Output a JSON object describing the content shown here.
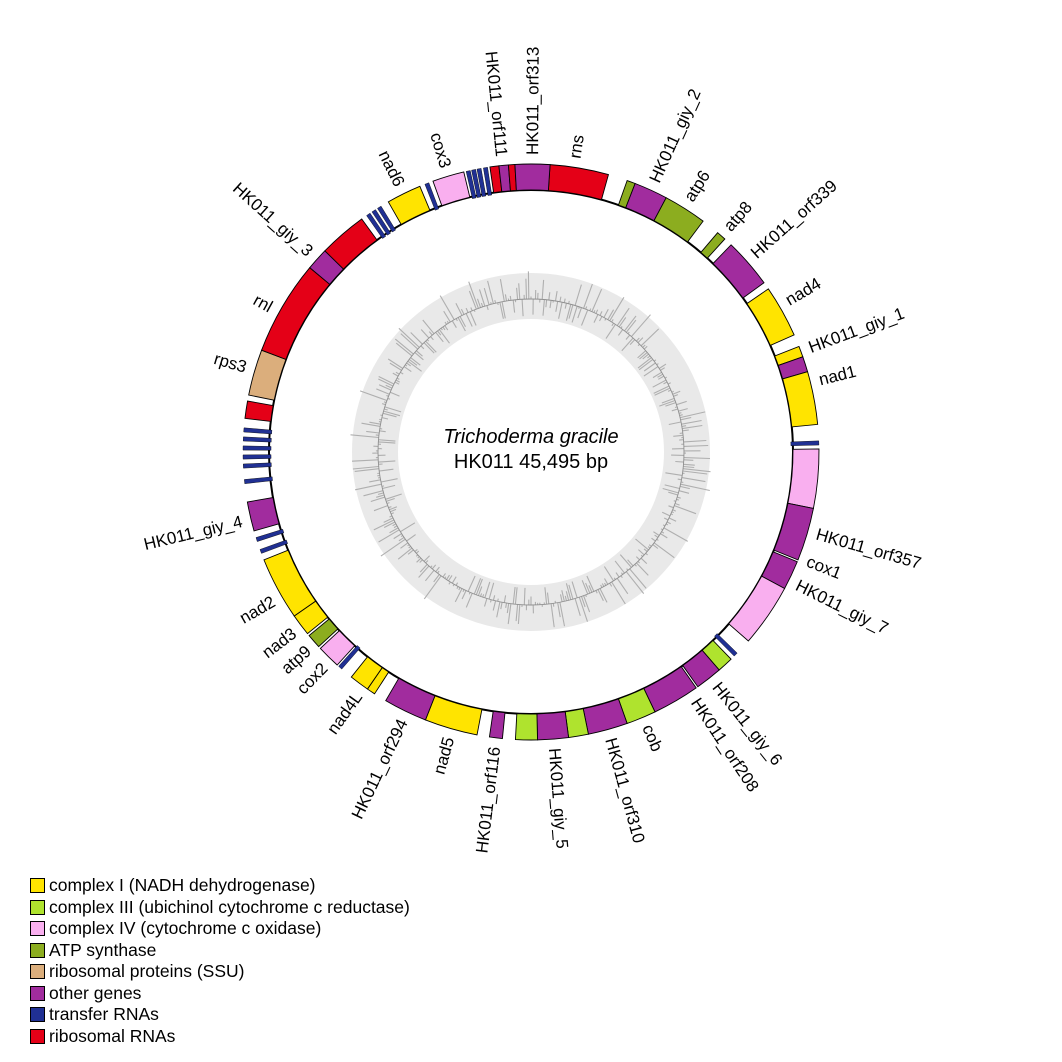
{
  "chart_data": {
    "type": "circular-genome-map",
    "title": "Trichoderma gracile",
    "subtitle": "HK011  45,495 bp",
    "genome_length_bp": 45495,
    "legend": [
      {
        "key": "complex1",
        "color": "#FFE400",
        "label": "complex I (NADH dehydrogenase)"
      },
      {
        "key": "complex3",
        "color": "#AFE32E",
        "label": "complex III (ubichinol cytochrome c reductase)"
      },
      {
        "key": "complex4",
        "color": "#F9AFEF",
        "label": "complex IV (cytochrome c oxidase)"
      },
      {
        "key": "atp",
        "color": "#8CAD1F",
        "label": "ATP synthase"
      },
      {
        "key": "ssu",
        "color": "#DBAE7C",
        "label": "ribosomal proteins (SSU)"
      },
      {
        "key": "other",
        "color": "#A12C9E",
        "label": "other genes"
      },
      {
        "key": "trna",
        "color": "#203093",
        "label": "transfer RNAs"
      },
      {
        "key": "rrna",
        "color": "#E40017",
        "label": "ribosomal RNAs"
      }
    ],
    "segments": [
      {
        "name": "rns",
        "cat": "rrna",
        "a0": 3.8,
        "a1": 15.6
      },
      {
        "name": "atp6_exon1",
        "cat": "atp",
        "a0": 19.5,
        "a1": 21.2
      },
      {
        "name": "HK011_giy_2",
        "cat": "other",
        "a0": 21.2,
        "a1": 28.0
      },
      {
        "name": "atp6",
        "cat": "atp",
        "a0": 28.0,
        "a1": 36.7
      },
      {
        "name": "atp8",
        "cat": "atp",
        "a0": 40.4,
        "a1": 42.3
      },
      {
        "name": "HK011_orf339",
        "cat": "other",
        "a0": 44.0,
        "a1": 54.0
      },
      {
        "name": "nad4",
        "cat": "complex1",
        "a0": 55.5,
        "a1": 66.0
      },
      {
        "name": "nad1_exon1",
        "cat": "complex1",
        "a0": 68.5,
        "a1": 70.7
      },
      {
        "name": "HK011_giy_1",
        "cat": "other",
        "a0": 70.7,
        "a1": 73.8
      },
      {
        "name": "nad1",
        "cat": "complex1",
        "a0": 73.8,
        "a1": 84.5
      },
      {
        "name": "cox1",
        "cat": "complex4",
        "a0": 89.4,
        "a1": 101.3
      },
      {
        "name": "HK011_orf357",
        "cat": "other",
        "a0": 101.3,
        "a1": 112.0
      },
      {
        "name": "HK011_giy_7",
        "cat": "other",
        "a0": 112.4,
        "a1": 118.3
      },
      {
        "name": "cox1_exon2",
        "cat": "complex4",
        "a0": 118.3,
        "a1": 131.0
      },
      {
        "name": "cob_exon1",
        "cat": "complex3",
        "a0": 136.0,
        "a1": 139.2
      },
      {
        "name": "HK011_giy_6",
        "cat": "other",
        "a0": 139.2,
        "a1": 144.6
      },
      {
        "name": "HK011_orf208",
        "cat": "other",
        "a0": 145.0,
        "a1": 154.5
      },
      {
        "name": "cob",
        "cat": "complex3",
        "a0": 154.5,
        "a1": 160.5
      },
      {
        "name": "HK011_orf310",
        "cat": "other",
        "a0": 160.5,
        "a1": 168.5
      },
      {
        "name": "cob_exon3",
        "cat": "complex3",
        "a0": 168.5,
        "a1": 172.5
      },
      {
        "name": "HK011_giy_5",
        "cat": "other",
        "a0": 172.5,
        "a1": 178.7
      },
      {
        "name": "cob_exon4",
        "cat": "complex3",
        "a0": 178.7,
        "a1": 183.1
      },
      {
        "name": "HK011_orf116",
        "cat": "other",
        "a0": 185.7,
        "a1": 188.3
      },
      {
        "name": "nad5",
        "cat": "complex1",
        "a0": 190.8,
        "a1": 201.5
      },
      {
        "name": "HK011_orf294",
        "cat": "other",
        "a0": 201.5,
        "a1": 210.3
      },
      {
        "name": "nad4L_exon1",
        "cat": "complex1",
        "a0": 212.9,
        "a1": 214.6
      },
      {
        "name": "nad4L",
        "cat": "complex1",
        "a0": 214.6,
        "a1": 218.6
      },
      {
        "name": "cox2",
        "cat": "complex4",
        "a0": 222.3,
        "a1": 227.0
      },
      {
        "name": "atp9",
        "cat": "atp",
        "a0": 227.5,
        "a1": 230.4
      },
      {
        "name": "nad3",
        "cat": "complex1",
        "a0": 230.9,
        "a1": 235.3
      },
      {
        "name": "nad2",
        "cat": "complex1",
        "a0": 235.3,
        "a1": 248.0
      },
      {
        "name": "HK011_giy_4",
        "cat": "other",
        "a0": 254.1,
        "a1": 260.0
      },
      {
        "name": "rrna_segment_a",
        "cat": "rrna",
        "a0": 276.7,
        "a1": 280.2
      },
      {
        "name": "rps3",
        "cat": "ssu",
        "a0": 281.4,
        "a1": 290.7
      },
      {
        "name": "rnl",
        "cat": "rrna",
        "a0": 290.7,
        "a1": 309.8
      },
      {
        "name": "HK011_giy_3",
        "cat": "other",
        "a0": 309.8,
        "a1": 314.3
      },
      {
        "name": "rnl_exon2",
        "cat": "rrna",
        "a0": 314.3,
        "a1": 324.0
      },
      {
        "name": "nad6",
        "cat": "complex1",
        "a0": 330.3,
        "a1": 337.3
      },
      {
        "name": "cox3",
        "cat": "complex4",
        "a0": 340.1,
        "a1": 346.5
      },
      {
        "name": "rrna_segment_b",
        "cat": "rrna",
        "a0": 351.8,
        "a1": 353.6
      },
      {
        "name": "HK011_orf111",
        "cat": "other",
        "a0": 353.6,
        "a1": 355.5
      },
      {
        "name": "rrna_segment_c",
        "cat": "rrna",
        "a0": 355.5,
        "a1": 356.8
      },
      {
        "name": "HK011_orf313",
        "cat": "other",
        "a0": 356.8,
        "a1": 363.8
      }
    ],
    "trna_tick_angles": [
      88.2,
      134.7,
      221.5,
      249.8,
      252.3,
      264.1,
      267.2,
      269.0,
      270.8,
      272.6,
      274.4,
      325.6,
      326.9,
      328.2,
      338.8,
      347.4,
      348.5,
      349.6,
      350.9
    ],
    "gene_labels": [
      {
        "text": "rns",
        "angle": 8.5
      },
      {
        "text": "HK011_giy_2",
        "angle": 24.5
      },
      {
        "text": "atp6",
        "angle": 32.0
      },
      {
        "text": "atp8",
        "angle": 41.3
      },
      {
        "text": "HK011_orf339",
        "angle": 48.5
      },
      {
        "text": "nad4",
        "angle": 59.5
      },
      {
        "text": "HK011_giy_1",
        "angle": 69.5
      },
      {
        "text": "nad1",
        "angle": 76.0
      },
      {
        "text": "HK011_orf357",
        "angle": 106.0
      },
      {
        "text": "cox1",
        "angle": 111.5
      },
      {
        "text": "HK011_giy_7",
        "angle": 116.5
      },
      {
        "text": "HK011_giy_6",
        "angle": 141.5
      },
      {
        "text": "HK011_orf208",
        "angle": 146.5
      },
      {
        "text": "cob",
        "angle": 157.0
      },
      {
        "text": "HK011_orf310",
        "angle": 164.5
      },
      {
        "text": "HK011_giy_5",
        "angle": 175.5
      },
      {
        "text": "HK011_orf116",
        "angle": 187.0
      },
      {
        "text": "nad5",
        "angle": 196.0
      },
      {
        "text": "HK011_orf294",
        "angle": 205.5
      },
      {
        "text": "nad4L",
        "angle": 215.5
      },
      {
        "text": "cox2",
        "angle": 224.0
      },
      {
        "text": "atp9",
        "angle": 228.5
      },
      {
        "text": "nad3",
        "angle": 232.8
      },
      {
        "text": "nad2",
        "angle": 240.0
      },
      {
        "text": "HK011_giy_4",
        "angle": 256.5
      },
      {
        "text": "rps3",
        "angle": 286.5
      },
      {
        "text": "rnl",
        "angle": 299.0
      },
      {
        "text": "HK011_giy_3",
        "angle": 312.0
      },
      {
        "text": "nad6",
        "angle": 333.8
      },
      {
        "text": "cox3",
        "angle": 343.3
      },
      {
        "text": "HK011_orf111",
        "angle": 354.3
      },
      {
        "text": "HK011_orf313",
        "angle": 0.3
      }
    ],
    "gc_ring": {
      "band_color": "#E9E9E9",
      "midline_color": "#8F8F8F",
      "spike_color": "#AFAFAF"
    },
    "layout": {
      "legend_position": "bottom-left",
      "grid": false
    }
  }
}
